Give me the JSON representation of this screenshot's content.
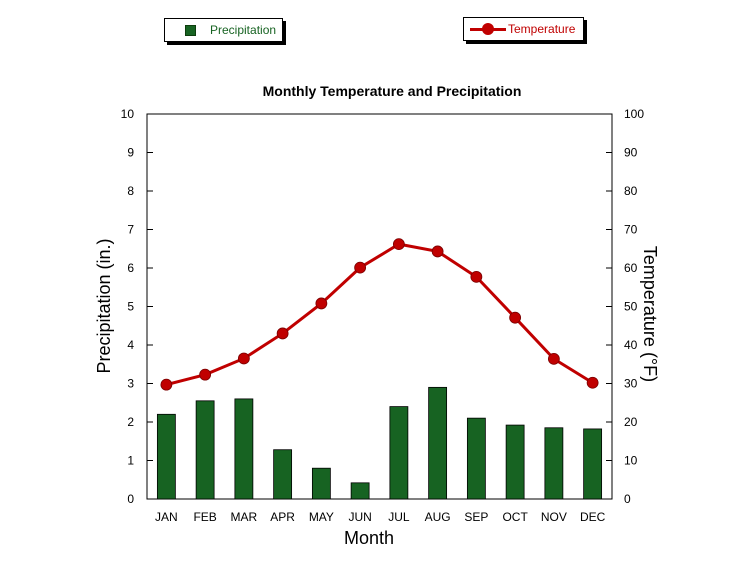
{
  "colors": {
    "precipitation": "#176322",
    "temperature": "#c00000"
  },
  "legend": {
    "precipitation_label": "Precipitation",
    "temperature_label": "Temperature"
  },
  "chart_data": {
    "type": "bar+line",
    "title": "Monthly Temperature and Precipitation",
    "xlabel": "Month",
    "ylabel_left": "Precipitation (in.)",
    "ylabel_right": "Temperature (°F)",
    "categories": [
      "JAN",
      "FEB",
      "MAR",
      "APR",
      "MAY",
      "JUN",
      "JUL",
      "AUG",
      "SEP",
      "OCT",
      "NOV",
      "DEC"
    ],
    "ylim_left": [
      0,
      10
    ],
    "ylim_right": [
      0,
      100
    ],
    "yticks_left": [
      "0",
      "1",
      "2",
      "3",
      "4",
      "5",
      "6",
      "7",
      "8",
      "9",
      "10"
    ],
    "yticks_right": [
      "0",
      "10",
      "20",
      "30",
      "40",
      "50",
      "60",
      "70",
      "80",
      "90",
      "100"
    ],
    "grid": false,
    "series": [
      {
        "name": "Precipitation",
        "type": "bar",
        "axis": "left",
        "values": [
          2.2,
          2.55,
          2.6,
          1.28,
          0.8,
          0.42,
          2.4,
          2.9,
          2.1,
          1.92,
          1.85,
          1.82
        ]
      },
      {
        "name": "Temperature",
        "type": "line",
        "axis": "right",
        "values": [
          29.7,
          32.3,
          36.5,
          43,
          50.8,
          60.1,
          66.2,
          64.3,
          57.7,
          47.1,
          36.4,
          30.2
        ]
      }
    ]
  }
}
